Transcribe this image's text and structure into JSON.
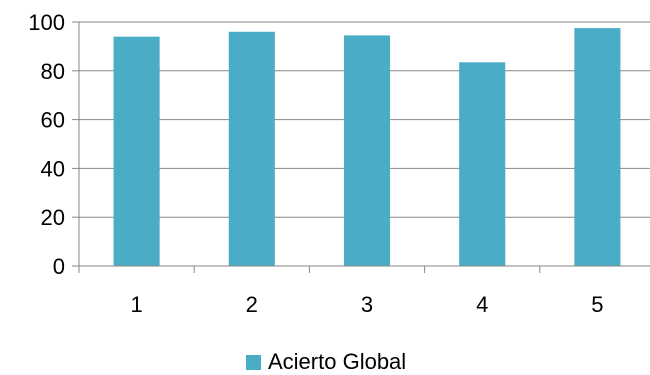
{
  "chart_data": {
    "type": "bar",
    "categories": [
      "1",
      "2",
      "3",
      "4",
      "5"
    ],
    "series": [
      {
        "name": "Acierto Global",
        "values": [
          94,
          96,
          94.5,
          83.5,
          97.5
        ],
        "color": "#4BACC6"
      }
    ],
    "ylim": [
      0,
      100
    ],
    "yticks": [
      0,
      20,
      40,
      60,
      80,
      100
    ],
    "grid": true,
    "legend": "bottom"
  }
}
